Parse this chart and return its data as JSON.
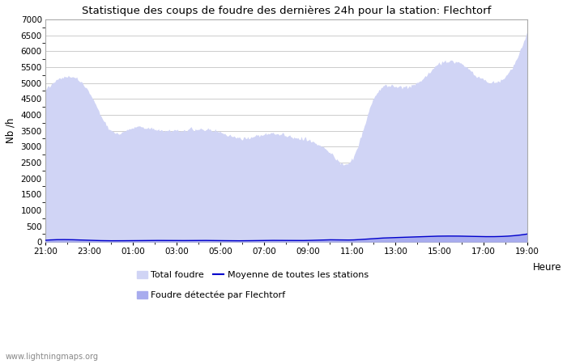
{
  "title": "Statistique des coups de foudre des dernières 24h pour la station: Flechtorf",
  "xlabel": "Heure",
  "ylabel": "Nb /h",
  "ylim": [
    0,
    7000
  ],
  "yticks": [
    0,
    500,
    1000,
    1500,
    2000,
    2500,
    3000,
    3500,
    4000,
    4500,
    5000,
    5500,
    6000,
    6500,
    7000
  ],
  "xtick_labels": [
    "21:00",
    "23:00",
    "01:00",
    "03:00",
    "05:00",
    "07:00",
    "09:00",
    "11:00",
    "13:00",
    "15:00",
    "17:00",
    "19:00"
  ],
  "fill_total_color": "#d0d4f5",
  "fill_station_color": "#a8acee",
  "line_color": "#0000cc",
  "watermark": "www.lightningmaps.org",
  "legend_total": "Total foudre",
  "legend_moyenne": "Moyenne de toutes les stations",
  "legend_flechtorf": "Foudre détectée par Flechtorf",
  "num_points": 23,
  "total_foudre_keypoints": [
    4800,
    5200,
    4700,
    3500,
    3600,
    3550,
    3500,
    3550,
    3450,
    3250,
    3400,
    3350,
    3200,
    2800,
    2600,
    4500,
    4900,
    5000,
    5600,
    5600,
    5100,
    5200,
    6600
  ],
  "flechtorf_keypoints": [
    70,
    90,
    70,
    50,
    55,
    60,
    55,
    60,
    55,
    50,
    60,
    55,
    55,
    80,
    70,
    120,
    150,
    180,
    200,
    200,
    180,
    200,
    280
  ],
  "moyenne_keypoints": [
    55,
    75,
    55,
    40,
    45,
    50,
    45,
    50,
    45,
    40,
    50,
    50,
    50,
    70,
    65,
    110,
    140,
    165,
    185,
    185,
    170,
    180,
    250
  ]
}
